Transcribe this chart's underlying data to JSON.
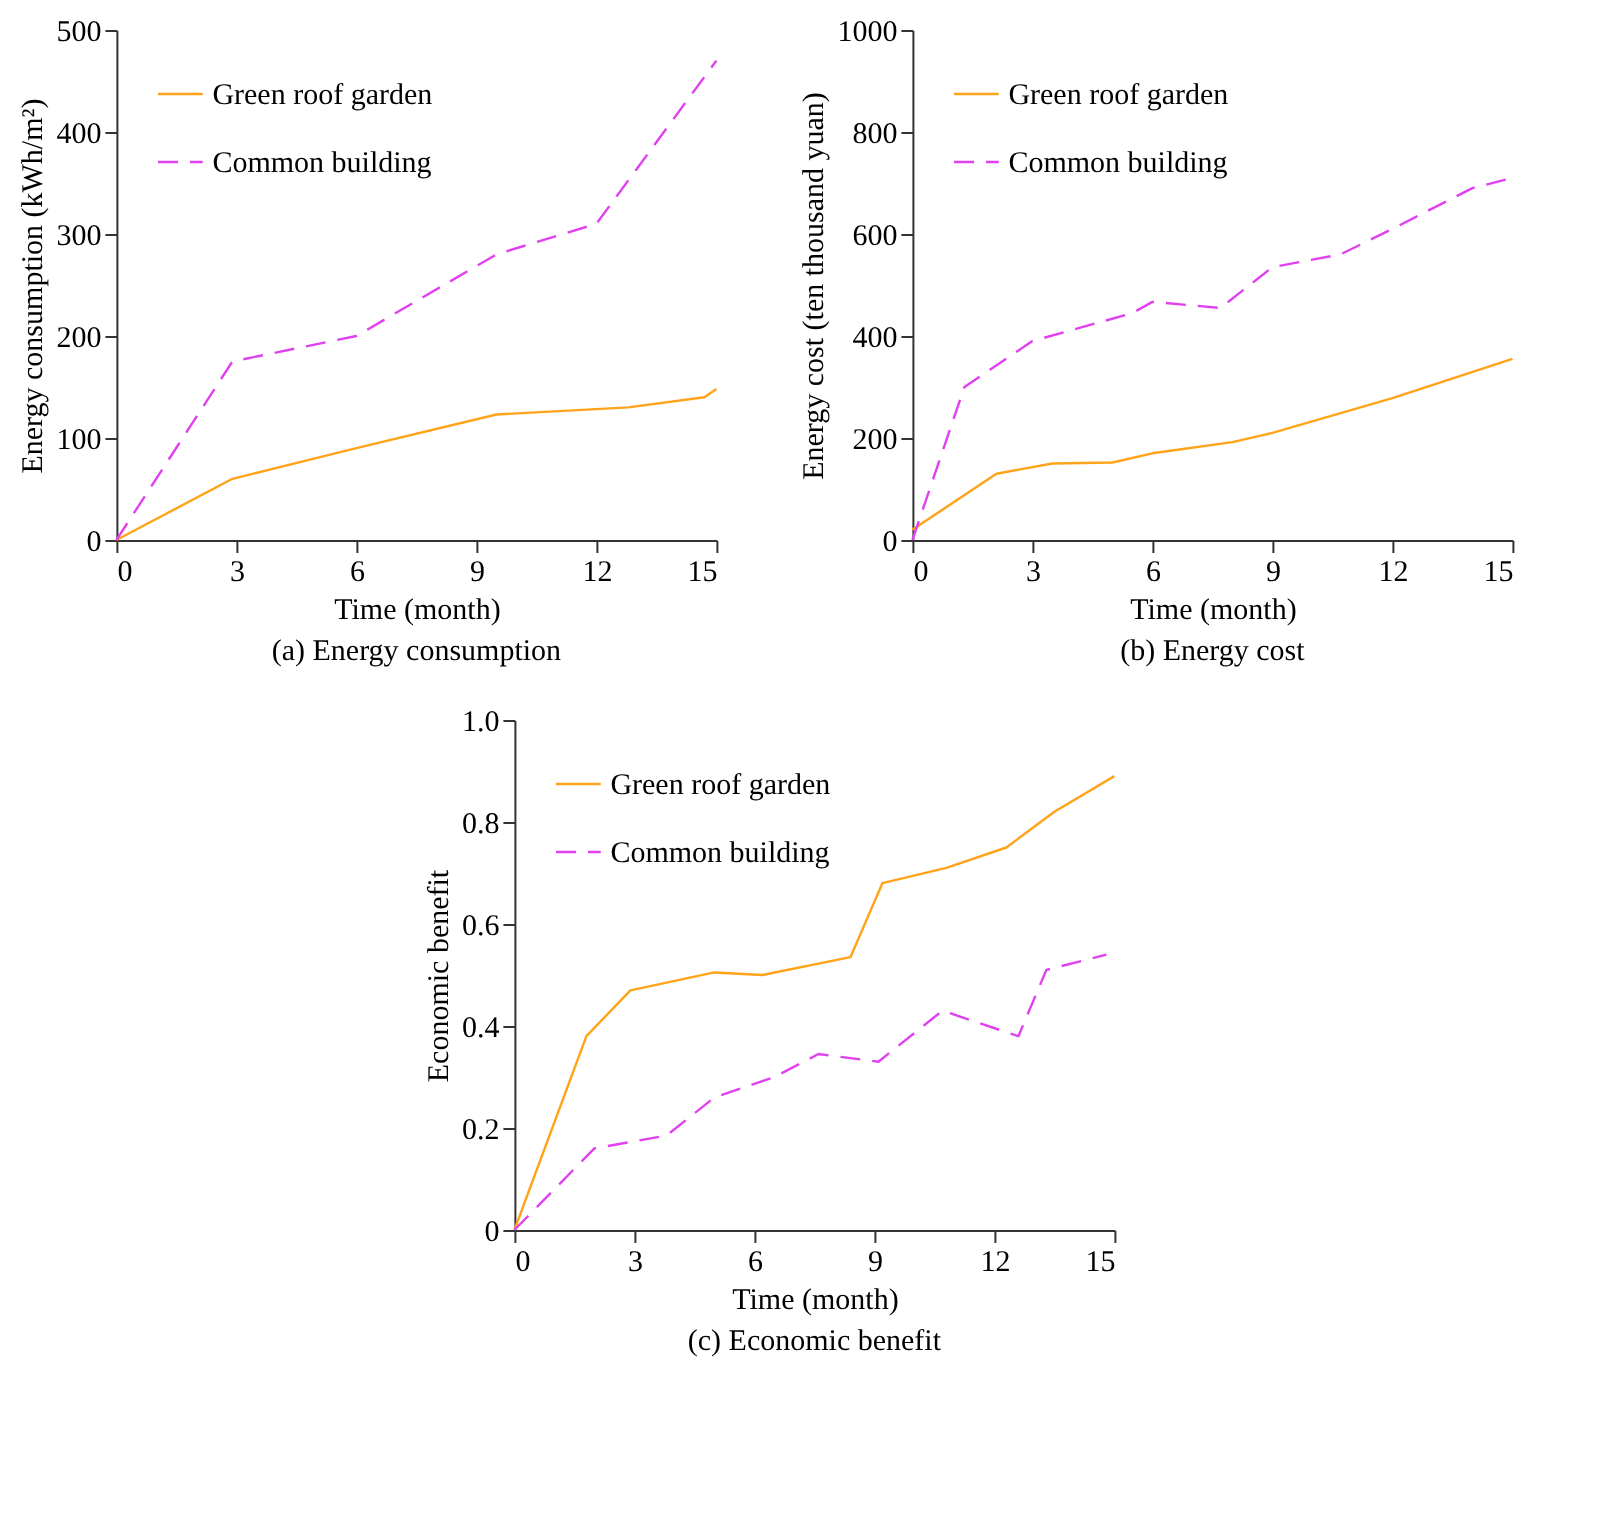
{
  "chart_data": [
    {
      "type": "line",
      "title": "(a) Energy consumption",
      "xlabel": "Time (month)",
      "ylabel": "Energy consumption (kWh/m²)",
      "xlim": [
        0,
        15
      ],
      "xticks": [
        0,
        3,
        6,
        9,
        12,
        15
      ],
      "ylim": [
        0,
        500
      ],
      "yticks": [
        0,
        100,
        200,
        300,
        400,
        500
      ],
      "grid": false,
      "legend": "top left",
      "series": [
        {
          "name": "Green roof garden",
          "color": "#ffa319",
          "line_style": "solid",
          "x": [
            0,
            2.9,
            6,
            9.5,
            12.8,
            14.7,
            15
          ],
          "values": [
            0,
            60,
            90,
            123,
            130,
            140,
            148
          ]
        },
        {
          "name": "Common building",
          "color": "#e040f0",
          "line_style": "dashed",
          "x": [
            0,
            2.9,
            6,
            9.5,
            12,
            15
          ],
          "values": [
            0,
            175,
            200,
            280,
            310,
            470
          ]
        }
      ]
    },
    {
      "type": "line",
      "title": "(b) Energy cost",
      "xlabel": "Time (month)",
      "ylabel": "Energy cost (ten thousand yuan)",
      "xlim": [
        0,
        15
      ],
      "xticks": [
        0,
        3,
        6,
        9,
        12,
        15
      ],
      "ylim": [
        0,
        1000
      ],
      "yticks": [
        0,
        200,
        400,
        600,
        800,
        1000
      ],
      "grid": false,
      "legend": "top left",
      "series": [
        {
          "name": "Green roof garden",
          "color": "#ffa319",
          "line_style": "solid",
          "x": [
            0,
            2.1,
            3.5,
            5,
            6,
            8,
            9,
            12,
            15
          ],
          "values": [
            20,
            130,
            150,
            152,
            170,
            192,
            210,
            278,
            355
          ]
        },
        {
          "name": "Common building",
          "color": "#e040f0",
          "line_style": "dashed",
          "x": [
            0,
            1.3,
            3,
            5.5,
            6,
            7.7,
            9,
            10.7,
            12,
            14,
            15
          ],
          "values": [
            0,
            300,
            390,
            445,
            467,
            455,
            535,
            560,
            610,
            690,
            710
          ]
        }
      ]
    },
    {
      "type": "line",
      "title": "(c) Economic benefit",
      "xlabel": "Time (month)",
      "ylabel": "Economic benefit",
      "xlim": [
        0,
        15
      ],
      "xticks": [
        0,
        3,
        6,
        9,
        12,
        15
      ],
      "ylim": [
        0,
        1.0
      ],
      "yticks": [
        {
          "value": 0,
          "label": "0"
        },
        {
          "value": 0.2,
          "label": "0.2"
        },
        {
          "value": 0.4,
          "label": "0.4"
        },
        {
          "value": 0.6,
          "label": "0.6"
        },
        {
          "value": 0.8,
          "label": "0.8"
        },
        {
          "value": 1.0,
          "label": "1.0"
        }
      ],
      "grid": false,
      "legend": "top left",
      "series": [
        {
          "name": "Green roof garden",
          "color": "#ffa319",
          "line_style": "solid",
          "x": [
            0,
            1.8,
            2.9,
            5,
            6.2,
            8.4,
            9.2,
            10.8,
            12.3,
            13.5,
            15
          ],
          "values": [
            0,
            0.38,
            0.47,
            0.505,
            0.5,
            0.535,
            0.68,
            0.71,
            0.75,
            0.82,
            0.89
          ]
        },
        {
          "name": "Common building",
          "color": "#e040f0",
          "line_style": "dashed",
          "x": [
            0,
            2,
            3.8,
            5,
            6.5,
            7.6,
            9.1,
            10.7,
            12.6,
            13.3,
            14.8
          ],
          "values": [
            0,
            0.16,
            0.185,
            0.26,
            0.3,
            0.345,
            0.33,
            0.43,
            0.38,
            0.51,
            0.54
          ]
        }
      ]
    }
  ]
}
